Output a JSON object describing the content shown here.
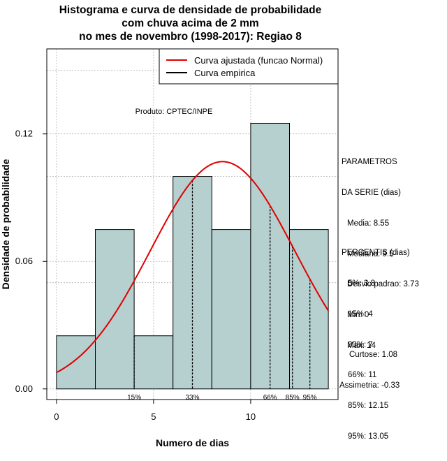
{
  "title_lines": [
    "Histograma e curva de densidade de probabilidade",
    "com chuva acima de 2 mm",
    "no mes de novembro (1998-2017): Regiao 8"
  ],
  "product_label": "Produto: CPTEC/INPE",
  "legend": [
    {
      "label": "Curva ajustada (funcao Normal)",
      "color": "#e00000"
    },
    {
      "label": "Curva empirica",
      "color": "#000000"
    }
  ],
  "parametros": {
    "header": [
      "PARAMETROS",
      "DA SERIE (dias)"
    ],
    "lines": [
      "Media: 8.55",
      "Mediana: 9.5",
      "Desvio padrao: 3.73",
      "Min: 0",
      "Max: 14"
    ]
  },
  "percentis": {
    "header": "PERCENTIS (dias)",
    "lines": [
      "5%: 3.8",
      "15%: 4",
      "33%: 7",
      "66%: 11",
      "85%: 12.15",
      "95%: 13.05"
    ]
  },
  "shape": {
    "lines": [
      "Curtose: 1.08",
      "Assimetria: -0.33"
    ]
  },
  "colors": {
    "bar_fill": "#b6cfcf",
    "bar_stroke": "#000000",
    "normal_curve": "#e00000",
    "grid": "#b4b4b4"
  },
  "chart_data": {
    "type": "bar",
    "xlabel": "Numero de dias",
    "ylabel": "Densidade de probabilidade",
    "xlim": [
      -0.5,
      14.5
    ],
    "ylim": [
      -0.005,
      0.16
    ],
    "x_ticks": [
      0,
      5,
      10
    ],
    "y_ticks": [
      0.0,
      0.06,
      0.12
    ],
    "y_tick_labels": [
      "0.00",
      "0.06",
      "0.12"
    ],
    "grid": true,
    "bins": [
      {
        "start": 0,
        "end": 2,
        "density": 0.025
      },
      {
        "start": 2,
        "end": 4,
        "density": 0.075
      },
      {
        "start": 4,
        "end": 6,
        "density": 0.025
      },
      {
        "start": 6,
        "end": 8,
        "density": 0.1
      },
      {
        "start": 8,
        "end": 10,
        "density": 0.075
      },
      {
        "start": 10,
        "end": 12,
        "density": 0.125
      },
      {
        "start": 12,
        "end": 14,
        "density": 0.075
      }
    ],
    "percentile_markers": [
      {
        "label": "15%",
        "x": 4
      },
      {
        "label": "33%",
        "x": 7
      },
      {
        "label": "66%",
        "x": 11
      },
      {
        "label": "85%",
        "x": 12.15
      },
      {
        "label": "95%",
        "x": 13.05
      }
    ],
    "normal_fit": {
      "mean": 8.55,
      "sd": 3.73,
      "x_range": [
        0,
        14
      ]
    }
  }
}
